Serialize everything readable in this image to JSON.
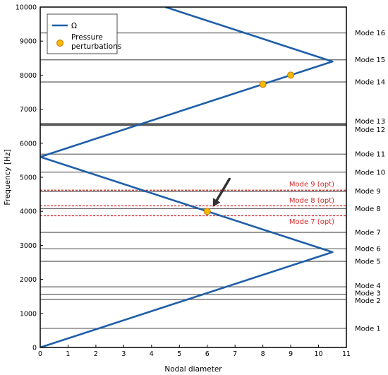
{
  "chart_data": {
    "type": "line",
    "title": "",
    "xlabel": "Nodal diameter",
    "ylabel": "Frequency [Hz]",
    "xlim": [
      0,
      11
    ],
    "ylim": [
      0,
      10000
    ],
    "x_ticks": [
      "0",
      "1",
      "2",
      "3",
      "4",
      "5",
      "6",
      "7",
      "8",
      "9",
      "10",
      "11"
    ],
    "y_ticks": [
      "0",
      "1000",
      "2000",
      "3000",
      "4000",
      "5000",
      "6000",
      "7000",
      "8000",
      "9000",
      "10000"
    ],
    "grid": false,
    "legend_position": "top-left",
    "legend": [
      {
        "label": "Ω",
        "marker": "line",
        "color": "#1f5fa8"
      },
      {
        "label": "Pressure\nperturbations",
        "marker": "circle",
        "color": "#f5b800"
      }
    ],
    "omega_series": {
      "name": "Ω",
      "color": "#1f5fa8",
      "x": [
        0,
        10.5,
        0,
        10.5,
        4.5
      ],
      "y": [
        0,
        2800,
        5600,
        8400,
        10000
      ]
    },
    "pressure_series": {
      "name": "Pressure perturbations",
      "color": "#f5b800",
      "x": [
        6,
        8,
        9
      ],
      "y": [
        4000,
        7730,
        8000
      ]
    },
    "modes": [
      {
        "label": "Mode 1",
        "freq": 560,
        "label_y": 560,
        "style": "solid"
      },
      {
        "label": "Mode 2",
        "freq": 1410,
        "label_y": 1380,
        "style": "solid"
      },
      {
        "label": "Mode 3",
        "freq": 1560,
        "label_y": 1600,
        "style": "solid"
      },
      {
        "label": "Mode 4",
        "freq": 1780,
        "label_y": 1820,
        "style": "solid"
      },
      {
        "label": "Mode 5",
        "freq": 2530,
        "label_y": 2530,
        "style": "solid"
      },
      {
        "label": "Mode 6",
        "freq": 2900,
        "label_y": 2900,
        "style": "solid"
      },
      {
        "label": "Mode 7",
        "freq": 3380,
        "label_y": 3380,
        "style": "solid"
      },
      {
        "label": "Mode 8",
        "freq": 4080,
        "label_y": 4080,
        "style": "solid"
      },
      {
        "label": "Mode 9",
        "freq": 4580,
        "label_y": 4600,
        "style": "solid"
      },
      {
        "label": "Mode 10",
        "freq": 5150,
        "label_y": 5150,
        "style": "solid"
      },
      {
        "label": "Mode 11",
        "freq": 5680,
        "label_y": 5680,
        "style": "solid"
      },
      {
        "label": "Mode 12",
        "freq": 6530,
        "label_y": 6400,
        "style": "thick"
      },
      {
        "label": "Mode 13",
        "freq": 6570,
        "label_y": 6650,
        "style": "thick"
      },
      {
        "label": "Mode 14",
        "freq": 7800,
        "label_y": 7800,
        "style": "solid"
      },
      {
        "label": "Mode 15",
        "freq": 8450,
        "label_y": 8450,
        "style": "solid"
      },
      {
        "label": "Mode 16",
        "freq": 9240,
        "label_y": 9240,
        "style": "solid"
      }
    ],
    "optimized_modes": [
      {
        "label": "Mode 9 (opt)",
        "freq": 4620,
        "label_y": 4800
      },
      {
        "label": "Mode 8 (opt)",
        "freq": 4160,
        "label_y": 4330
      },
      {
        "label": "Mode 7 (opt)",
        "freq": 3870,
        "label_y": 3700
      }
    ],
    "annotation_arrow": {
      "from": [
        6.8,
        4950
      ],
      "to": [
        6.2,
        4130
      ],
      "color": "#333333"
    }
  }
}
